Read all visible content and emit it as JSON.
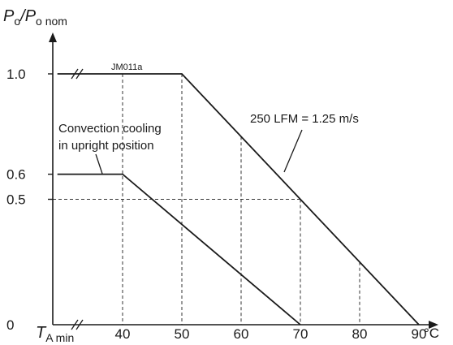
{
  "chart_data": {
    "type": "line",
    "figure_id": "JM011a",
    "ylabel": {
      "main": "P",
      "sub1": "o",
      "slash": "/P",
      "sub2": "o nom"
    },
    "xlabel_min": {
      "main": "T",
      "sub": "A min"
    },
    "x_unit": "°C",
    "x_ticks": [
      40,
      50,
      60,
      70,
      80,
      90
    ],
    "x_tick_labels": [
      "40",
      "50",
      "60",
      "70",
      "80",
      "90"
    ],
    "y_ticks": [
      0,
      0.5,
      0.6,
      1.0
    ],
    "y_tick_labels": [
      "0",
      "0.5",
      "0.6",
      "1.0"
    ],
    "xlim": [
      29,
      92
    ],
    "ylim": [
      0,
      1.2
    ],
    "axis_break_x": true,
    "series": [
      {
        "name": "250 LFM = 1.25 m/s",
        "x": [
          29,
          50,
          90
        ],
        "y": [
          1.0,
          1.0,
          0
        ]
      },
      {
        "name": "Convection cooling in upright position",
        "label_lines": [
          "Convection cooling",
          "in upright position"
        ],
        "x": [
          29,
          40,
          70
        ],
        "y": [
          0.6,
          0.6,
          0
        ]
      }
    ],
    "guide_lines": {
      "vertical_x": [
        40,
        50,
        60,
        70,
        80
      ],
      "horizontal_y": [
        0.5
      ]
    }
  }
}
